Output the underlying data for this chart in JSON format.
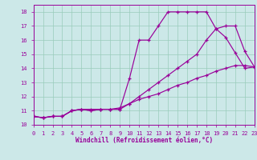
{
  "xlabel": "Windchill (Refroidissement éolien,°C)",
  "bg_color": "#cce8e8",
  "grid_color": "#99ccbb",
  "line_color": "#990099",
  "xlim": [
    0,
    23
  ],
  "ylim": [
    10,
    18.5
  ],
  "xticks": [
    0,
    1,
    2,
    3,
    4,
    5,
    6,
    7,
    8,
    9,
    10,
    11,
    12,
    13,
    14,
    15,
    16,
    17,
    18,
    19,
    20,
    21,
    22,
    23
  ],
  "yticks": [
    10,
    11,
    12,
    13,
    14,
    15,
    16,
    17,
    18
  ],
  "line1": {
    "x": [
      0,
      1,
      2,
      3,
      4,
      5,
      6,
      7,
      8,
      9,
      10,
      11,
      12,
      13,
      14,
      15,
      16,
      17,
      18,
      19,
      20,
      21,
      22,
      23
    ],
    "y": [
      10.6,
      10.5,
      10.6,
      10.6,
      11.0,
      11.1,
      11.0,
      11.1,
      11.1,
      11.1,
      13.3,
      16.0,
      16.0,
      17.0,
      18.0,
      18.0,
      18.0,
      18.0,
      18.0,
      16.8,
      16.2,
      15.1,
      14.0,
      14.1
    ]
  },
  "line2": {
    "x": [
      0,
      1,
      2,
      3,
      4,
      5,
      6,
      7,
      8,
      9,
      10,
      11,
      12,
      13,
      14,
      15,
      16,
      17,
      18,
      19,
      20,
      21,
      22,
      23
    ],
    "y": [
      10.6,
      10.5,
      10.6,
      10.6,
      11.0,
      11.1,
      11.0,
      11.1,
      11.1,
      11.1,
      11.5,
      12.0,
      12.5,
      13.0,
      13.5,
      14.0,
      14.5,
      15.0,
      16.0,
      16.8,
      17.0,
      17.0,
      15.2,
      14.1
    ]
  },
  "line3": {
    "x": [
      0,
      1,
      2,
      3,
      4,
      5,
      6,
      7,
      8,
      9,
      10,
      11,
      12,
      13,
      14,
      15,
      16,
      17,
      18,
      19,
      20,
      21,
      22,
      23
    ],
    "y": [
      10.6,
      10.5,
      10.6,
      10.6,
      11.0,
      11.1,
      11.1,
      11.1,
      11.1,
      11.2,
      11.5,
      11.8,
      12.0,
      12.2,
      12.5,
      12.8,
      13.0,
      13.3,
      13.5,
      13.8,
      14.0,
      14.2,
      14.2,
      14.1
    ]
  }
}
